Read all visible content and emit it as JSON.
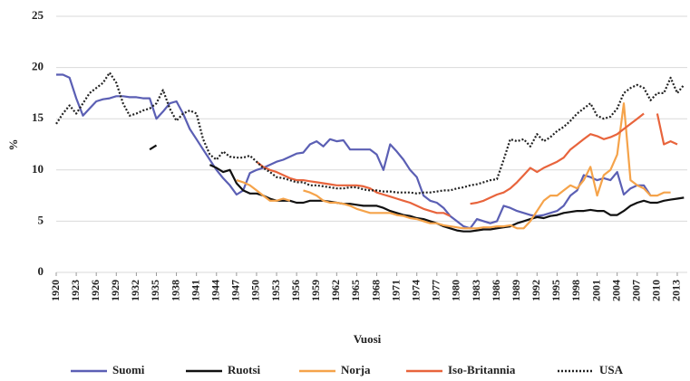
{
  "chart_data": {
    "type": "line",
    "ylabel": "%",
    "xlabel": "Vuosi",
    "xlim": [
      1920,
      2014.5
    ],
    "ylim": [
      0,
      25
    ],
    "xticks": [
      1920,
      1923,
      1926,
      1929,
      1932,
      1935,
      1938,
      1941,
      1944,
      1947,
      1950,
      1953,
      1956,
      1959,
      1962,
      1965,
      1968,
      1971,
      1974,
      1977,
      1980,
      1983,
      1986,
      1989,
      1992,
      1995,
      1998,
      2001,
      2004,
      2007,
      2010,
      2013
    ],
    "yticks": [
      0,
      5,
      10,
      15,
      20,
      25
    ],
    "grid": true,
    "legend": "bottom",
    "x": [
      1920,
      1921,
      1922,
      1923,
      1924,
      1925,
      1926,
      1927,
      1928,
      1929,
      1930,
      1931,
      1932,
      1933,
      1934,
      1935,
      1936,
      1937,
      1938,
      1939,
      1940,
      1941,
      1942,
      1943,
      1944,
      1945,
      1946,
      1947,
      1948,
      1949,
      1950,
      1951,
      1952,
      1953,
      1954,
      1955,
      1956,
      1957,
      1958,
      1959,
      1960,
      1961,
      1962,
      1963,
      1964,
      1965,
      1966,
      1967,
      1968,
      1969,
      1970,
      1971,
      1972,
      1973,
      1974,
      1975,
      1976,
      1977,
      1978,
      1979,
      1980,
      1981,
      1982,
      1983,
      1984,
      1985,
      1986,
      1987,
      1988,
      1989,
      1990,
      1991,
      1992,
      1993,
      1994,
      1995,
      1996,
      1997,
      1998,
      1999,
      2000,
      2001,
      2002,
      2003,
      2004,
      2005,
      2006,
      2007,
      2008,
      2009,
      2010,
      2011,
      2012,
      2013,
      2014
    ],
    "series": [
      {
        "name": "Suomi",
        "color": "#5b5fb4",
        "dash": "solid",
        "values": [
          19.3,
          19.3,
          19,
          17,
          15.3,
          16,
          16.7,
          16.9,
          17,
          17.2,
          17.2,
          17.1,
          17.1,
          17,
          17,
          15,
          15.7,
          16.5,
          16.7,
          15.5,
          14,
          13,
          12,
          11,
          10,
          9.2,
          8.5,
          7.6,
          8,
          9.7,
          10,
          10.2,
          10.5,
          10.8,
          11,
          11.3,
          11.6,
          11.7,
          12.5,
          12.8,
          12.3,
          13,
          12.8,
          12.9,
          12,
          12,
          12,
          12,
          11.5,
          10,
          12.5,
          11.8,
          11,
          10,
          9.3,
          7.5,
          7,
          6.8,
          6.3,
          5.5,
          5,
          4.5,
          4.3,
          5.2,
          5,
          4.8,
          5,
          6.5,
          6.3,
          6,
          5.8,
          5.6,
          5.5,
          5.6,
          5.8,
          6,
          6.5,
          7.5,
          8,
          9.5,
          9.3,
          9,
          9.2,
          9,
          9.8,
          7.6,
          8.2,
          8.5,
          8.5,
          7.5,
          null,
          null,
          null,
          null,
          null
        ]
      },
      {
        "name": "Ruotsi",
        "color": "#111111",
        "dash": "solid",
        "values": [
          null,
          null,
          null,
          null,
          null,
          null,
          null,
          null,
          null,
          null,
          null,
          null,
          null,
          null,
          12,
          12.4,
          null,
          null,
          null,
          null,
          null,
          null,
          null,
          10.5,
          10.2,
          9.8,
          10,
          8.7,
          8,
          7.7,
          7.7,
          7.5,
          7.2,
          7,
          7,
          7,
          6.8,
          6.8,
          7,
          7,
          7,
          6.9,
          6.8,
          6.7,
          6.7,
          6.6,
          6.5,
          6.5,
          6.5,
          6.3,
          6,
          5.8,
          5.6,
          5.5,
          5.3,
          5.2,
          5,
          4.8,
          4.5,
          4.3,
          4.1,
          4,
          4,
          4.1,
          4.2,
          4.2,
          4.3,
          4.4,
          4.5,
          4.8,
          5,
          5.2,
          5.4,
          5.3,
          5.5,
          5.6,
          5.8,
          5.9,
          6,
          6,
          6.1,
          6,
          6,
          5.6,
          5.6,
          6,
          6.5,
          6.8,
          7,
          6.8,
          6.8,
          7,
          7.1,
          7.2,
          7.3
        ]
      },
      {
        "name": "Norja",
        "color": "#f5a34a",
        "dash": "solid",
        "values": [
          null,
          null,
          null,
          null,
          null,
          null,
          null,
          null,
          null,
          null,
          null,
          null,
          null,
          null,
          null,
          null,
          null,
          null,
          null,
          null,
          null,
          null,
          null,
          null,
          null,
          null,
          null,
          9,
          8.8,
          8.5,
          8,
          7.5,
          7,
          7,
          7.2,
          7,
          null,
          8,
          7.8,
          7.5,
          7,
          6.8,
          6.8,
          6.7,
          6.5,
          6.2,
          6,
          5.8,
          5.8,
          5.8,
          5.8,
          5.6,
          5.5,
          5.3,
          5.2,
          5,
          4.8,
          4.8,
          4.6,
          4.5,
          4.4,
          4.3,
          4.3,
          4.3,
          4.4,
          4.4,
          4.5,
          4.5,
          4.6,
          4.3,
          4.3,
          5,
          6,
          7,
          7.5,
          7.5,
          8,
          8.5,
          8.2,
          9,
          10.3,
          7.5,
          9.5,
          10,
          11.5,
          16.5,
          9,
          8.5,
          8.2,
          7.5,
          7.5,
          7.8,
          7.8,
          null,
          null
        ]
      },
      {
        "name": "Iso-Britannia",
        "color": "#e8643c",
        "dash": "solid",
        "values": [
          null,
          null,
          null,
          null,
          null,
          null,
          null,
          null,
          null,
          null,
          null,
          null,
          null,
          null,
          null,
          null,
          null,
          null,
          null,
          null,
          null,
          null,
          null,
          null,
          null,
          null,
          null,
          null,
          null,
          null,
          10.8,
          10.3,
          10,
          9.8,
          9.5,
          9.2,
          9,
          9,
          8.9,
          8.8,
          8.7,
          8.6,
          8.5,
          8.5,
          8.5,
          8.5,
          8.4,
          8.2,
          7.8,
          7.6,
          7.4,
          7.2,
          7,
          6.8,
          6.5,
          6.2,
          6,
          5.8,
          5.8,
          5.5,
          null,
          null,
          6.7,
          6.8,
          7,
          7.3,
          7.6,
          7.8,
          8.2,
          8.8,
          9.5,
          10.2,
          9.8,
          10.2,
          10.5,
          10.8,
          11.2,
          12,
          12.5,
          13,
          13.5,
          13.3,
          13,
          13.2,
          13.5,
          14,
          14.5,
          15,
          15.5,
          null,
          15.5,
          12.5,
          12.8,
          12.5,
          null
        ]
      },
      {
        "name": "USA",
        "color": "#222222",
        "dash": "dotted",
        "values": [
          14.5,
          15.5,
          16.3,
          15.5,
          16.5,
          17.5,
          18,
          18.5,
          19.5,
          18.5,
          16.5,
          15.3,
          15.5,
          15.8,
          16,
          16.5,
          17.8,
          16,
          14.8,
          15.5,
          15.8,
          15.5,
          13,
          11.5,
          11,
          11.8,
          11.3,
          11.2,
          11.2,
          11.4,
          10.8,
          10.2,
          9.8,
          9.3,
          9.2,
          9,
          8.8,
          8.8,
          8.5,
          8.5,
          8.4,
          8.3,
          8.2,
          8.2,
          8.3,
          8.3,
          8.1,
          8,
          8,
          7.9,
          7.9,
          7.8,
          7.8,
          7.8,
          7.7,
          7.8,
          7.8,
          7.9,
          8,
          8,
          8.2,
          8.3,
          8.5,
          8.6,
          8.8,
          9,
          9.1,
          11,
          13,
          12.8,
          13,
          12.3,
          13.5,
          12.8,
          13.2,
          13.8,
          14.2,
          14.8,
          15.5,
          16,
          16.5,
          15.3,
          15,
          15.2,
          16,
          17.5,
          18,
          18.3,
          18,
          16.8,
          17.5,
          17.5,
          19,
          17.5,
          18.3
        ]
      }
    ]
  }
}
